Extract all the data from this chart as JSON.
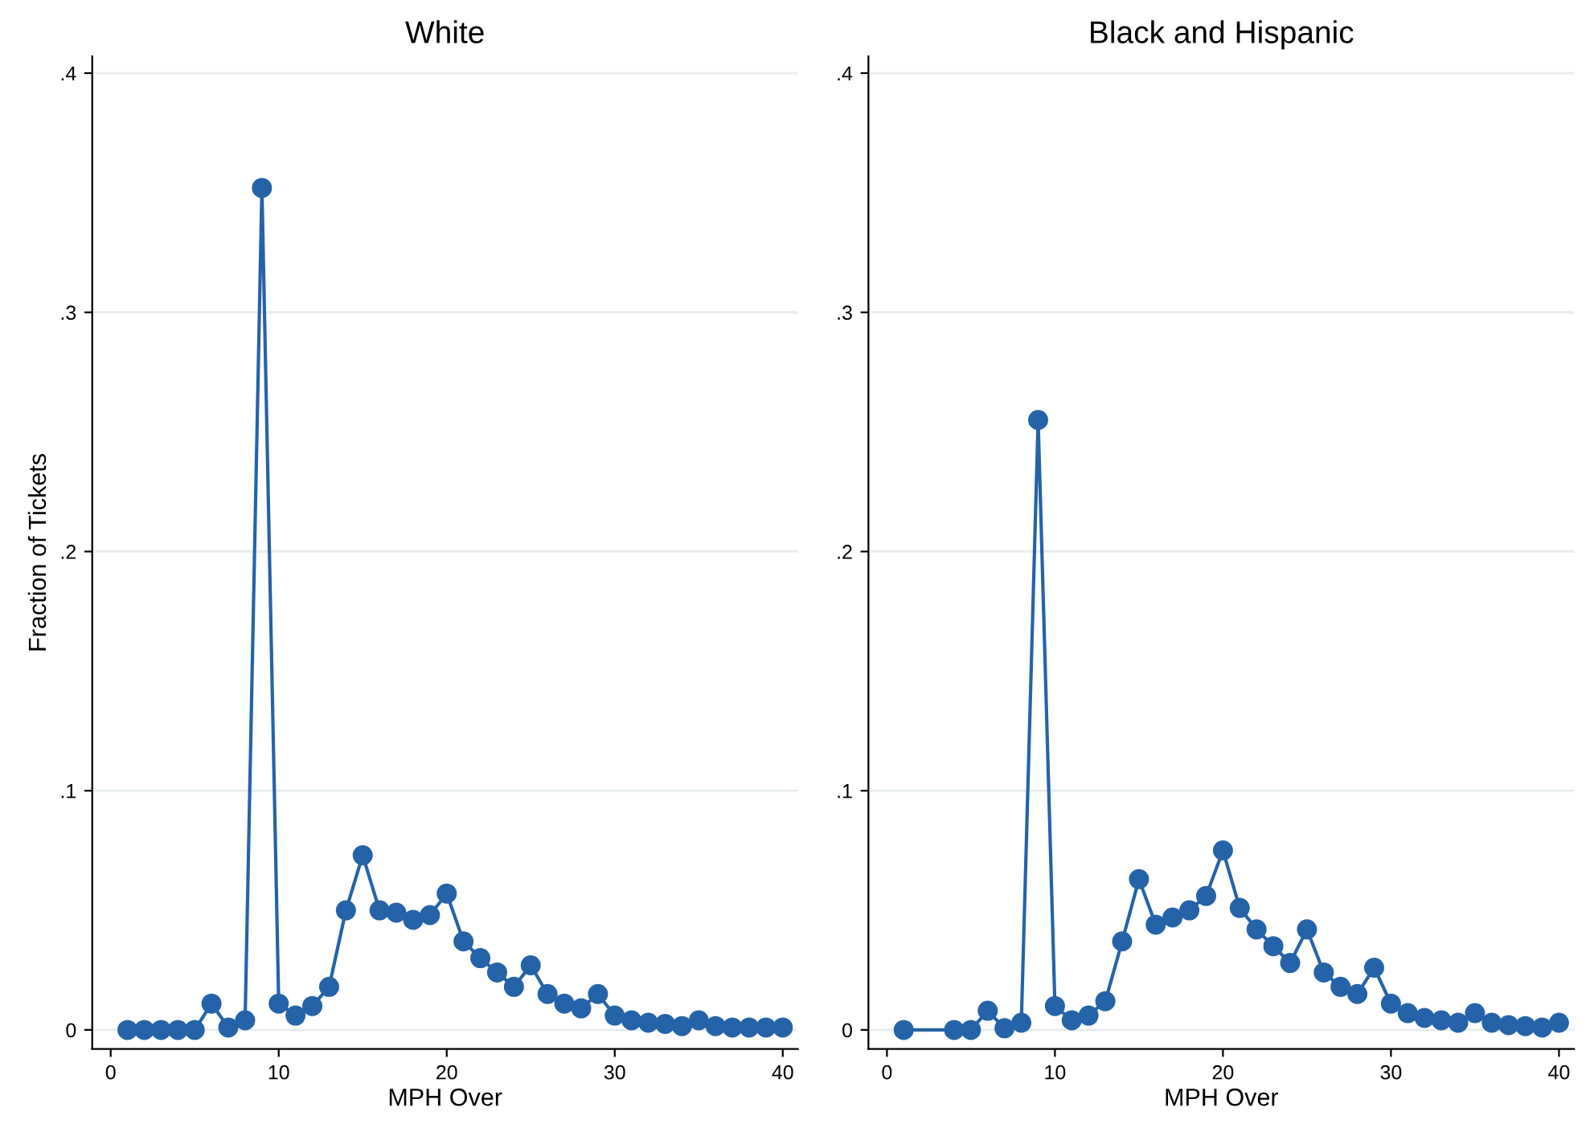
{
  "chart_data": [
    {
      "type": "line",
      "title": "White",
      "xlabel": "MPH Over",
      "ylabel": "Fraction of Tickets",
      "marker": "circle",
      "grid": "y",
      "x": [
        1,
        2,
        3,
        4,
        5,
        6,
        7,
        8,
        9,
        10,
        11,
        12,
        13,
        14,
        15,
        16,
        17,
        18,
        19,
        20,
        21,
        22,
        23,
        24,
        25,
        26,
        27,
        28,
        29,
        30,
        31,
        32,
        33,
        34,
        35,
        36,
        37,
        38,
        39,
        40
      ],
      "series": [
        {
          "color": "#2563a8",
          "values": [
            0,
            0,
            0,
            0,
            0,
            0.011,
            0.001,
            0.004,
            0.352,
            0.011,
            0.006,
            0.01,
            0.018,
            0.05,
            0.073,
            0.05,
            0.049,
            0.046,
            0.048,
            0.057,
            0.037,
            0.03,
            0.024,
            0.018,
            0.027,
            0.015,
            0.011,
            0.009,
            0.015,
            0.006,
            0.004,
            0.003,
            0.0025,
            0.0016,
            0.004,
            0.0016,
            0.001,
            0.001,
            0.001,
            0.001
          ]
        }
      ],
      "xlim": [
        -1.1,
        40.9
      ],
      "xticks": [
        0,
        10,
        20,
        30,
        40
      ],
      "ylim": [
        -0.008,
        0.407
      ],
      "yticks": [
        {
          "value": 0,
          "label": "0"
        },
        {
          "value": 0.1,
          "label": ".1"
        },
        {
          "value": 0.2,
          "label": ".2"
        },
        {
          "value": 0.3,
          "label": ".3"
        },
        {
          "value": 0.4,
          "label": ".4"
        }
      ]
    },
    {
      "type": "line",
      "title": "Black and Hispanic",
      "xlabel": "MPH Over",
      "marker": "circle",
      "grid": "y",
      "x": [
        1,
        4,
        5,
        6,
        7,
        8,
        9,
        10,
        11,
        12,
        13,
        14,
        15,
        16,
        17,
        18,
        19,
        20,
        21,
        22,
        23,
        24,
        25,
        26,
        27,
        28,
        29,
        30,
        31,
        32,
        33,
        34,
        35,
        36,
        37,
        38,
        39,
        40
      ],
      "series": [
        {
          "color": "#2563a8",
          "values": [
            0,
            0,
            0,
            0.008,
            0.0007,
            0.003,
            0.255,
            0.01,
            0.004,
            0.006,
            0.012,
            0.037,
            0.063,
            0.044,
            0.047,
            0.05,
            0.056,
            0.075,
            0.051,
            0.042,
            0.035,
            0.028,
            0.042,
            0.024,
            0.018,
            0.015,
            0.026,
            0.011,
            0.007,
            0.005,
            0.004,
            0.003,
            0.007,
            0.003,
            0.002,
            0.0016,
            0.001,
            0.003
          ]
        }
      ],
      "xlim": [
        -1.1,
        40.9
      ],
      "xticks": [
        0,
        10,
        20,
        30,
        40
      ],
      "ylim": [
        -0.008,
        0.407
      ],
      "yticks": [
        {
          "value": 0,
          "label": "0"
        },
        {
          "value": 0.1,
          "label": ".1"
        },
        {
          "value": 0.2,
          "label": ".2"
        },
        {
          "value": 0.3,
          "label": ".3"
        },
        {
          "value": 0.4,
          "label": ".4"
        }
      ]
    }
  ]
}
